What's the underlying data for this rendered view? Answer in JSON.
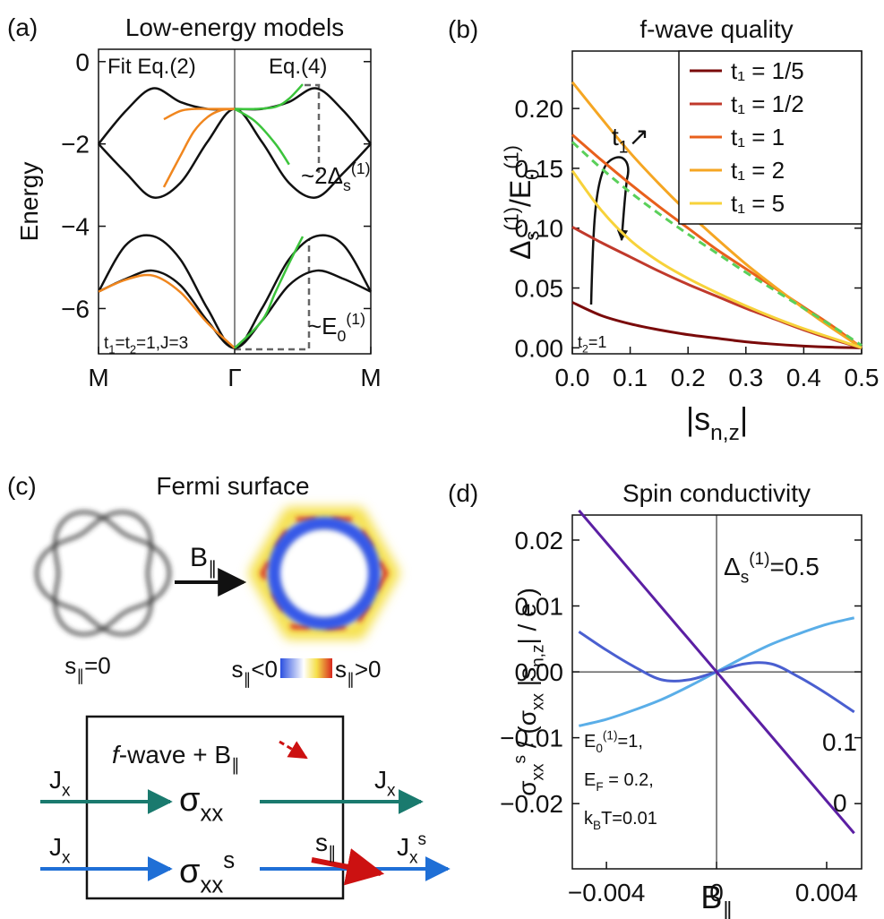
{
  "chart_data": [
    {
      "type": "line",
      "panel": "(a)",
      "title": "Low-energy models",
      "ylabel": "Energy",
      "xlim": [
        -1,
        1
      ],
      "xticks": [
        {
          "value": -1,
          "label": "M"
        },
        {
          "value": 0,
          "label": "Γ"
        },
        {
          "value": 1,
          "label": "M"
        }
      ],
      "ylim": [
        -7.1,
        0.3
      ],
      "yticks": [
        0,
        {
          "value": -2,
          "label": "−2"
        },
        {
          "value": -4,
          "label": "−4"
        },
        {
          "value": -6,
          "label": "−6"
        }
      ],
      "series": [
        {
          "color": "#111111",
          "x": [
            -1,
            -0.8,
            -0.6,
            -0.4,
            -0.2,
            0,
            0.2,
            0.4,
            0.6,
            0.8,
            1
          ],
          "values": [
            -2.0,
            -1.2,
            -0.65,
            -0.98,
            -1.15,
            -1.15,
            -1.15,
            -0.98,
            -0.65,
            -1.2,
            -2.0
          ]
        },
        {
          "color": "#111111",
          "x": [
            -1,
            -0.8,
            -0.6,
            -0.4,
            -0.2,
            0,
            0.2,
            0.4,
            0.6,
            0.8,
            1
          ],
          "values": [
            -2.0,
            -2.7,
            -3.3,
            -2.95,
            -1.95,
            -1.15,
            -1.95,
            -2.95,
            -3.3,
            -2.7,
            -2.0
          ]
        },
        {
          "color": "#111111",
          "x": [
            -1,
            -0.8,
            -0.6,
            -0.4,
            -0.2,
            0,
            0.2,
            0.4,
            0.6,
            0.8,
            1
          ],
          "values": [
            -5.59,
            -4.46,
            -4.24,
            -4.8,
            -6.0,
            -6.96,
            -6.0,
            -4.8,
            -4.24,
            -4.46,
            -5.59
          ]
        },
        {
          "color": "#111111",
          "x": [
            -1,
            -0.8,
            -0.6,
            -0.4,
            -0.2,
            0,
            0.2,
            0.4,
            0.6,
            0.8,
            1
          ],
          "values": [
            -5.59,
            -5.28,
            -5.08,
            -5.43,
            -6.3,
            -6.96,
            -6.3,
            -5.43,
            -5.08,
            -5.28,
            -5.59
          ]
        },
        {
          "name": "Fit Eq.(2)",
          "color": "#f0861e",
          "x": [
            -0.52,
            -0.4,
            -0.3,
            -0.2,
            -0.1,
            0
          ],
          "values": [
            -1.4,
            -1.2,
            -1.15,
            -1.15,
            -1.15,
            -1.15
          ]
        },
        {
          "color": "#f0861e",
          "x": [
            -0.52,
            -0.4,
            -0.3,
            -0.2,
            -0.1,
            0
          ],
          "values": [
            -3.05,
            -2.3,
            -1.7,
            -1.35,
            -1.18,
            -1.15
          ]
        },
        {
          "color": "#f0861e",
          "x": [
            -1,
            -0.8,
            -0.6,
            -0.4,
            -0.2,
            0
          ],
          "values": [
            -5.59,
            -5.3,
            -5.2,
            -5.6,
            -6.35,
            -6.96
          ]
        },
        {
          "name": "Eq.(4)",
          "color": "#3cc43c",
          "x": [
            0,
            0.15,
            0.3,
            0.4,
            0.5
          ],
          "values": [
            -1.15,
            -1.15,
            -1.1,
            -0.9,
            -0.55
          ]
        },
        {
          "color": "#3cc43c",
          "x": [
            0,
            0.15,
            0.3,
            0.4
          ],
          "values": [
            -1.15,
            -1.45,
            -2.0,
            -2.5
          ]
        },
        {
          "color": "#3cc43c",
          "x": [
            0,
            0.2,
            0.3,
            0.4,
            0.5
          ],
          "values": [
            -6.96,
            -6.3,
            -5.6,
            -4.9,
            -4.25
          ]
        }
      ],
      "annotations": [
        [
          {
            "text": "~2Δ"
          },
          {
            "text": "s",
            "pos": "sub"
          },
          {
            "text": "(1)",
            "pos": "sup"
          }
        ],
        [
          {
            "text": "~E"
          },
          {
            "text": "0",
            "pos": "sub"
          },
          {
            "text": "(1)",
            "pos": "sup"
          }
        ],
        [
          {
            "text": "t"
          },
          {
            "text": "1",
            "pos": "sub"
          },
          {
            "text": "=t"
          },
          {
            "text": "2",
            "pos": "sub"
          },
          {
            "text": "=1,J=3"
          }
        ]
      ]
    },
    {
      "type": "line",
      "panel": "(b)",
      "title": "f-wave quality",
      "ylabel": [
        {
          "text": "Δ"
        },
        {
          "text": "s",
          "pos": "sub"
        },
        {
          "text": "(1)",
          "pos": "sup"
        },
        {
          "text": "/E"
        },
        {
          "text": "0",
          "pos": "sub"
        },
        {
          "text": "(1)",
          "pos": "sup"
        }
      ],
      "xlabel": [
        {
          "text": "|s"
        },
        {
          "text": "n,z",
          "pos": "sub"
        },
        {
          "text": "|"
        }
      ],
      "xlim": [
        0,
        0.5
      ],
      "xticks": [
        {
          "value": 0,
          "label": "0.0"
        },
        0.1,
        0.2,
        0.3,
        0.4,
        0.5
      ],
      "ylim": [
        -0.005,
        0.248
      ],
      "yticks": [
        {
          "value": 0,
          "label": "0.00"
        },
        0.05,
        {
          "value": 0.1,
          "label": "0.10"
        },
        0.15,
        {
          "value": 0.2,
          "label": "0.20"
        }
      ],
      "legend": "upper right",
      "x": [
        0,
        0.05,
        0.1,
        0.15,
        0.2,
        0.25,
        0.3,
        0.35,
        0.4,
        0.45,
        0.5
      ],
      "series": [
        {
          "name": "t₁ = 1/5",
          "color": "#7a0a0a",
          "values": [
            0.038,
            0.027,
            0.02,
            0.015,
            0.011,
            0.008,
            0.005,
            0.003,
            0.0015,
            0.0005,
            0
          ]
        },
        {
          "name": "t₁ = 1/2",
          "color": "#c0392b",
          "values": [
            0.101,
            0.088,
            0.076,
            0.064,
            0.053,
            0.043,
            0.033,
            0.024,
            0.015,
            0.007,
            0
          ]
        },
        {
          "name": "t₁ = 1",
          "color": "#e8601c",
          "values": [
            0.178,
            0.157,
            0.137,
            0.118,
            0.1,
            0.082,
            0.066,
            0.05,
            0.034,
            0.018,
            0
          ]
        },
        {
          "name": "t₁ = 2",
          "color": "#f5a623",
          "values": [
            0.222,
            0.192,
            0.163,
            0.137,
            0.113,
            0.091,
            0.07,
            0.051,
            0.033,
            0.016,
            0
          ]
        },
        {
          "name": "t₁ = 5",
          "color": "#f7d23a",
          "values": [
            0.148,
            0.115,
            0.09,
            0.072,
            0.058,
            0.046,
            0.035,
            0.025,
            0.016,
            0.008,
            0
          ]
        },
        {
          "color": "#5ad05a",
          "dash": true,
          "values": [
            0.172,
            0.15,
            0.13,
            0.112,
            0.095,
            0.079,
            0.063,
            0.048,
            0.033,
            0.018,
            0.002
          ]
        }
      ],
      "annotations": [
        [
          {
            "text": "t"
          },
          {
            "text": "1",
            "pos": "sub"
          },
          {
            "text": "↗"
          }
        ],
        [
          {
            "text": "t"
          },
          {
            "text": "2",
            "pos": "sub"
          },
          {
            "text": "=1"
          }
        ]
      ]
    },
    {
      "type": "line",
      "panel": "(d)",
      "title": "Spin conductivity",
      "ylabel": [
        {
          "text": "σ"
        },
        {
          "text": "xx",
          "pos": "sub"
        },
        {
          "text": "s",
          "pos": "sup"
        },
        {
          "text": " / (σ"
        },
        {
          "text": "xx",
          "pos": "sub"
        },
        {
          "text": " |s"
        },
        {
          "text": "n,z",
          "pos": "sub"
        },
        {
          "text": "| / e )"
        }
      ],
      "xlabel": [
        {
          "text": "B"
        },
        {
          "text": "∥",
          "pos": "sub"
        }
      ],
      "xlim": [
        -0.00524,
        0.00527
      ],
      "xticks": [
        {
          "value": -0.004,
          "label": "−0.004"
        },
        0,
        0.004
      ],
      "ylim": [
        -0.0299,
        0.0238
      ],
      "yticks": [
        {
          "value": -0.02,
          "label": "−0.02"
        },
        {
          "value": -0.01,
          "label": "−0.01"
        },
        {
          "value": 0,
          "label": "0.00"
        },
        0.01,
        0.02
      ],
      "x": [
        -0.005,
        -0.004,
        -0.003,
        -0.002,
        -0.001,
        0,
        0.001,
        0.002,
        0.003,
        0.004,
        0.005
      ],
      "series": [
        {
          "name": [
            {
              "text": "Δ"
            },
            {
              "text": "s",
              "pos": "sub"
            },
            {
              "text": "(1)",
              "pos": "sup"
            },
            {
              "text": "=0.5"
            }
          ],
          "color": "#5aaee8",
          "values": [
            -0.0082,
            -0.0072,
            -0.0058,
            -0.0042,
            -0.0022,
            0,
            0.0022,
            0.0042,
            0.0058,
            0.0072,
            0.0082
          ]
        },
        {
          "name": "0.1",
          "color": "#4a5fd0",
          "values": [
            0.0061,
            0.0033,
            0.0008,
            -0.0012,
            -0.0012,
            0,
            0.0012,
            0.0012,
            -0.0008,
            -0.0033,
            -0.0061
          ]
        },
        {
          "name": "0",
          "color": "#5b1fa3",
          "values": [
            0.0245,
            0.0196,
            0.0147,
            0.0098,
            0.0049,
            0,
            -0.0049,
            -0.0098,
            -0.0147,
            -0.0196,
            -0.0245
          ]
        }
      ],
      "annotations": [
        [
          {
            "text": "E"
          },
          {
            "text": "0",
            "pos": "sub"
          },
          {
            "text": "(1)",
            "pos": "sup"
          },
          {
            "text": "=1,"
          }
        ],
        [
          {
            "text": "E"
          },
          {
            "text": "F",
            "pos": "sub"
          },
          {
            "text": " = 0.2,"
          }
        ],
        [
          {
            "text": "k"
          },
          {
            "text": "B",
            "pos": "sub"
          },
          {
            "text": "T=0.01"
          }
        ]
      ]
    }
  ],
  "diagram": {
    "panel": "(c)",
    "title": "Fermi surface",
    "field_label": [
      {
        "text": "B"
      },
      {
        "text": "∥",
        "pos": "sub"
      }
    ],
    "s_zero": [
      {
        "text": "s"
      },
      {
        "text": "∥",
        "pos": "sub"
      },
      {
        "text": "=0"
      }
    ],
    "s_neg": [
      {
        "text": "s"
      },
      {
        "text": "∥",
        "pos": "sub"
      },
      {
        "text": "<0"
      }
    ],
    "s_pos": [
      {
        "text": "s"
      },
      {
        "text": "∥",
        "pos": "sub"
      },
      {
        "text": ">0"
      }
    ],
    "box_label": [
      {
        "text": "f"
      },
      {
        "text": "-wave +  B"
      },
      {
        "text": "∥",
        "pos": "sub"
      }
    ],
    "rows": [
      {
        "input": [
          {
            "text": "J"
          },
          {
            "text": "x",
            "pos": "sub"
          }
        ],
        "element": [
          {
            "text": "σ"
          },
          {
            "text": "xx",
            "pos": "sub"
          }
        ],
        "output": [
          {
            "text": "J"
          },
          {
            "text": "x",
            "pos": "sub"
          }
        ]
      },
      {
        "input": [
          {
            "text": "J"
          },
          {
            "text": "x",
            "pos": "sub"
          }
        ],
        "element": [
          {
            "text": "σ"
          },
          {
            "text": "xx",
            "pos": "sub"
          },
          {
            "text": "s",
            "pos": "sup"
          }
        ],
        "spin": [
          {
            "text": "s"
          },
          {
            "text": "∥",
            "pos": "sub"
          }
        ],
        "output": [
          {
            "text": "J"
          },
          {
            "text": "x",
            "pos": "sub"
          },
          {
            "text": "s",
            "pos": "sup"
          }
        ]
      }
    ]
  }
}
